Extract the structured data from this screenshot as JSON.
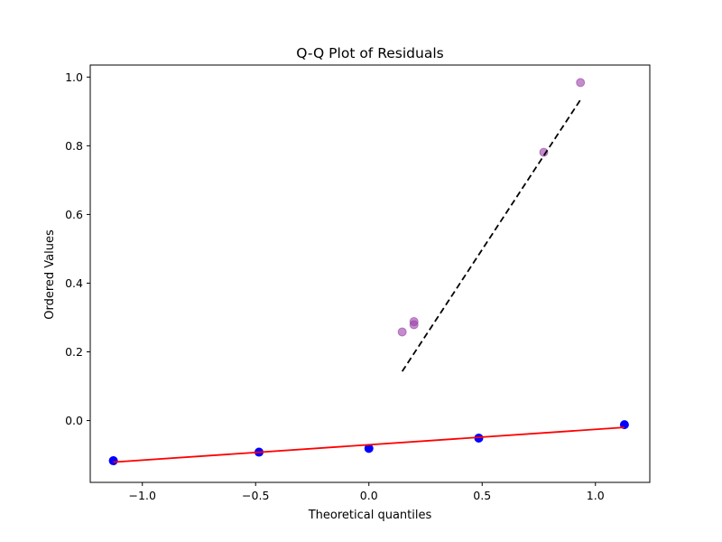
{
  "chart_data": {
    "type": "scatter",
    "title": "Q-Q Plot of Residuals",
    "xlabel": "Theoretical quantiles",
    "ylabel": "Ordered Values",
    "xlim": [
      -1.23,
      1.24
    ],
    "ylim": [
      -0.18,
      1.035
    ],
    "x_ticks": [
      -1.0,
      -0.5,
      0.0,
      0.5,
      1.0
    ],
    "x_tick_labels": [
      "−1.0",
      "−0.5",
      "0.0",
      "0.5",
      "1.0"
    ],
    "y_ticks": [
      0.0,
      0.2,
      0.4,
      0.6,
      0.8,
      1.0
    ],
    "y_tick_labels": [
      "0.0",
      "0.2",
      "0.4",
      "0.6",
      "0.8",
      "1.0"
    ],
    "grid": false,
    "series": [
      {
        "kind": "points",
        "color": "#0000ff",
        "x": [
          -1.128,
          -0.485,
          0.0,
          0.485,
          1.128
        ],
        "y": [
          -0.117,
          -0.092,
          -0.081,
          -0.051,
          -0.012
        ]
      },
      {
        "kind": "line",
        "color": "#ff0000",
        "style": "solid",
        "x": [
          -1.128,
          1.128
        ],
        "y": [
          -0.121,
          -0.02
        ]
      },
      {
        "kind": "points",
        "color": "#9b3fa8",
        "x": [
          0.147,
          0.199,
          0.199,
          0.772,
          0.934
        ],
        "y": [
          0.258,
          0.279,
          0.288,
          0.781,
          0.984
        ]
      },
      {
        "kind": "line",
        "color": "#000000",
        "style": "dashed",
        "x": [
          0.147,
          0.934
        ],
        "y": [
          0.143,
          0.934
        ]
      }
    ]
  }
}
